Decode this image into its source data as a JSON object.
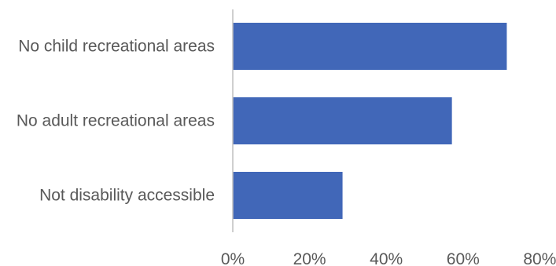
{
  "chart_data": {
    "type": "bar",
    "orientation": "horizontal",
    "categories": [
      "No child recreational areas",
      "No adult recreational areas",
      "Not disability accessible"
    ],
    "values": [
      71.4,
      57.1,
      28.6
    ],
    "value_unit": "%",
    "xlim": [
      0,
      80
    ],
    "ticks": [
      0,
      20,
      40,
      60,
      80
    ],
    "tick_labels": [
      "0%",
      "20%",
      "40%",
      "60%",
      "80%"
    ],
    "grid": false,
    "legend": "none",
    "bar_color": "#4167b8",
    "axis_color": "#bfbfbf",
    "text_color": "#595959"
  }
}
